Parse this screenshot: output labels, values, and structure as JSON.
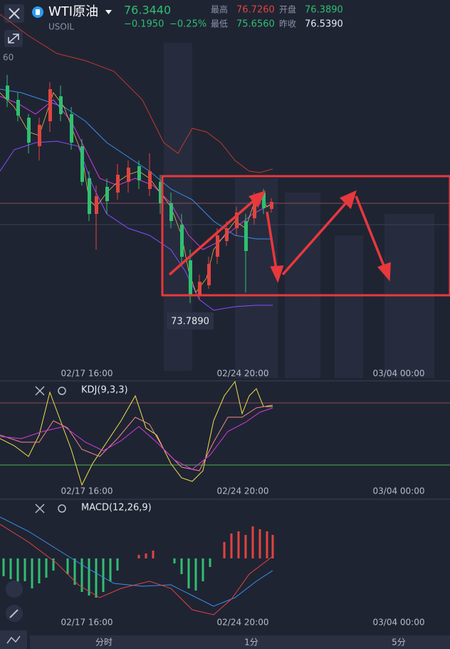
{
  "header": {
    "symbol": "WTI原油",
    "code": "USOIL",
    "price": "76.3440",
    "change": "−0.1950",
    "change_pct": "−0.25%",
    "high_label": "最高",
    "high": "76.7260",
    "open_label": "开盘",
    "open": "76.3890",
    "low_label": "最低",
    "low": "75.6560",
    "prev_close_label": "昨收",
    "prev_close": "76.5390"
  },
  "main_chart": {
    "axis_label": "60",
    "low_marker": "73.7890",
    "x_labels": [
      "02/17 16:00",
      "02/24 20:00",
      "03/04 00:00"
    ]
  },
  "kdj_panel": {
    "title": "KDJ(9,3,3)",
    "x_labels": [
      "02/17 16:00",
      "02/24 20:00",
      "03/04 00:00"
    ]
  },
  "macd_panel": {
    "title": "MACD(12,26,9)",
    "x_labels": [
      "02/17 16:00",
      "02/24 20:00",
      "03/04 00:00"
    ]
  },
  "tabs": [
    "分时",
    "1分",
    "5分"
  ]
}
